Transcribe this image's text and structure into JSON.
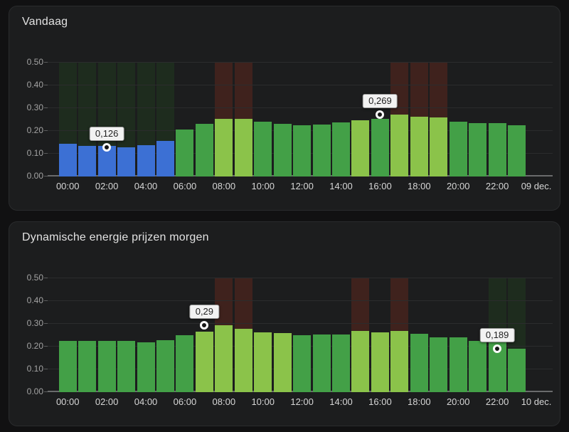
{
  "colors": {
    "page_bg": "#111112",
    "card_bg": "#1c1d1e",
    "card_border": "#2a2b2d",
    "title_text": "#e2e2e2",
    "x_tick_text": "#d6d6d6",
    "y_tick_text": "#a3a3a3",
    "gridline": "#2b2c2d",
    "bar_blue": "#3c70d4",
    "bar_green": "#43a047",
    "bar_light_green": "#8bc34a",
    "band_green": "#1e2c1e",
    "band_red": "#3f221d",
    "tooltip_bg": "#f2f2f2",
    "tooltip_text": "#1f1f1f"
  },
  "chart_data": [
    {
      "type": "bar",
      "title": "Vandaag",
      "date_label": "09 dec.",
      "ylim": [
        0,
        0.5
      ],
      "y_tick_labels": [
        "0.50",
        "0.40",
        "0.30",
        "0.20",
        "0.10",
        "0.00"
      ],
      "x_tick_labels": [
        "00:00",
        "02:00",
        "04:00",
        "06:00",
        "08:00",
        "10:00",
        "12:00",
        "14:00",
        "16:00",
        "18:00",
        "20:00",
        "22:00"
      ],
      "categories": [
        "00:00",
        "01:00",
        "02:00",
        "03:00",
        "04:00",
        "05:00",
        "06:00",
        "07:00",
        "08:00",
        "09:00",
        "10:00",
        "11:00",
        "12:00",
        "13:00",
        "14:00",
        "15:00",
        "16:00",
        "17:00",
        "18:00",
        "19:00",
        "20:00",
        "21:00",
        "22:00",
        "23:00"
      ],
      "values": [
        0.142,
        0.13,
        0.131,
        0.126,
        0.134,
        0.153,
        0.203,
        0.229,
        0.249,
        0.249,
        0.238,
        0.228,
        0.221,
        0.226,
        0.234,
        0.244,
        0.249,
        0.269,
        0.259,
        0.257,
        0.238,
        0.231,
        0.232,
        0.221
      ],
      "bar_colors": [
        "blue",
        "blue",
        "blue",
        "blue",
        "blue",
        "blue",
        "green",
        "green",
        "light",
        "light",
        "green",
        "green",
        "green",
        "green",
        "green",
        "light",
        "green",
        "light",
        "light",
        "light",
        "green",
        "green",
        "green",
        "green"
      ],
      "background_bands": [
        null,
        null,
        null,
        null,
        null,
        null,
        null,
        null,
        "red",
        "red",
        null,
        null,
        null,
        null,
        null,
        null,
        null,
        "red",
        "red",
        "red",
        null,
        null,
        null,
        null
      ],
      "background_bands_cheap": [
        "green",
        "green",
        "green",
        "green",
        "green",
        "green",
        null,
        null,
        null,
        null,
        null,
        null,
        null,
        null,
        null,
        null,
        null,
        null,
        null,
        null,
        null,
        null,
        null,
        null
      ],
      "grid": true,
      "legend": false,
      "annotations": [
        {
          "text": "0,126",
          "value": 0.126,
          "hour": 3,
          "dot_hour": 2
        },
        {
          "text": "0,269",
          "value": 0.269,
          "hour": 17,
          "dot_hour": 16
        }
      ]
    },
    {
      "type": "bar",
      "title": "Dynamische energie prijzen morgen",
      "date_label": "10 dec.",
      "ylim": [
        0,
        0.5
      ],
      "y_tick_labels": [
        "0.50",
        "0.40",
        "0.30",
        "0.20",
        "0.10",
        "0.00"
      ],
      "x_tick_labels": [
        "00:00",
        "02:00",
        "04:00",
        "06:00",
        "08:00",
        "10:00",
        "12:00",
        "14:00",
        "16:00",
        "18:00",
        "20:00",
        "22:00"
      ],
      "categories": [
        "00:00",
        "01:00",
        "02:00",
        "03:00",
        "04:00",
        "05:00",
        "06:00",
        "07:00",
        "08:00",
        "09:00",
        "10:00",
        "11:00",
        "12:00",
        "13:00",
        "14:00",
        "15:00",
        "16:00",
        "17:00",
        "18:00",
        "19:00",
        "20:00",
        "21:00",
        "22:00",
        "23:00"
      ],
      "values": [
        0.222,
        0.222,
        0.221,
        0.221,
        0.217,
        0.226,
        0.247,
        0.264,
        0.29,
        0.274,
        0.258,
        0.255,
        0.247,
        0.25,
        0.25,
        0.266,
        0.258,
        0.266,
        0.252,
        0.239,
        0.236,
        0.222,
        0.218,
        0.189
      ],
      "bar_colors": [
        "green",
        "green",
        "green",
        "green",
        "green",
        "green",
        "green",
        "light",
        "light",
        "light",
        "light",
        "light",
        "green",
        "green",
        "green",
        "light",
        "light",
        "light",
        "green",
        "green",
        "green",
        "green",
        "green",
        "green"
      ],
      "background_bands": [
        null,
        null,
        null,
        null,
        null,
        null,
        null,
        null,
        "red",
        "red",
        null,
        null,
        null,
        null,
        null,
        "red",
        null,
        "red",
        null,
        null,
        null,
        null,
        null,
        null
      ],
      "background_bands_cheap": [
        null,
        null,
        null,
        null,
        null,
        null,
        null,
        null,
        null,
        null,
        null,
        null,
        null,
        null,
        null,
        null,
        null,
        null,
        null,
        null,
        null,
        null,
        "green",
        "green"
      ],
      "grid": true,
      "legend": false,
      "annotations": [
        {
          "text": "0,29",
          "value": 0.29,
          "hour": 8,
          "dot_hour": 7
        },
        {
          "text": "0,189",
          "value": 0.189,
          "hour": 23,
          "dot_hour": 22
        }
      ]
    }
  ]
}
